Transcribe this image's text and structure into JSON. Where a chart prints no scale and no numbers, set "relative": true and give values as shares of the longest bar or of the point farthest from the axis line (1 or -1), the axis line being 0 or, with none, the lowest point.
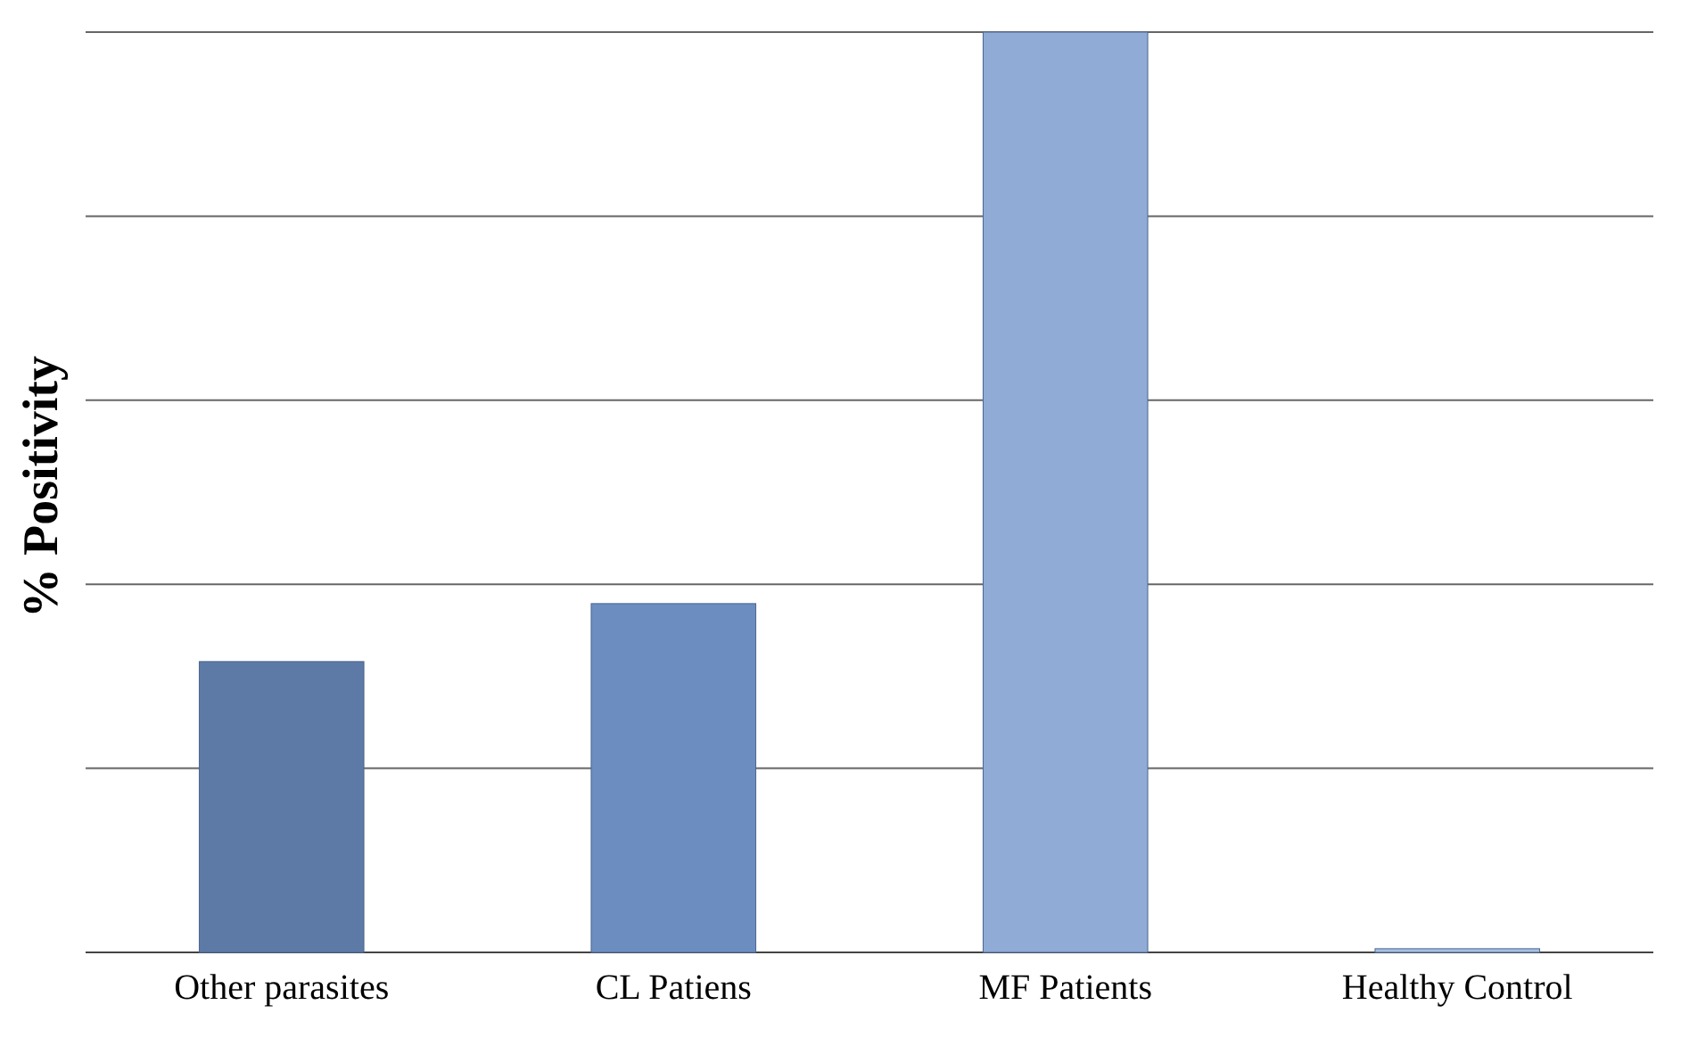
{
  "chart_data": {
    "type": "bar",
    "ylabel": "% Positivity",
    "relative": true,
    "grid": "y",
    "categories": [
      "Other parasites",
      "CL Patiens",
      "MF Patients",
      "Healthy Control"
    ],
    "values": [
      0.316,
      0.379,
      1,
      0.004
    ],
    "colors": [
      "#5d7aa6",
      "#6b8dbf",
      "#8fabd6",
      "#a9bfdf"
    ]
  }
}
